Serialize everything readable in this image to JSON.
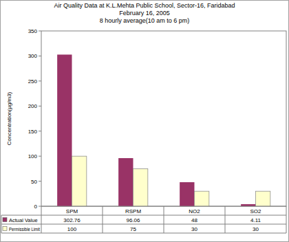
{
  "chart_data": {
    "type": "bar",
    "title": "Air Quality Data at K.L.Mehta Public School, Sector-16, Faridabad",
    "subtitle": [
      "February 16, 2005",
      "8 hourly average(10 am to 6 pm)"
    ],
    "y_label": "Concentration(µg/m3)",
    "categories": [
      "SPM",
      "RSPM",
      "NO2",
      "SO2"
    ],
    "series": [
      {
        "name": "Actual Value",
        "color": "#993366",
        "values": [
          302.76,
          96.06,
          48,
          4.11
        ]
      },
      {
        "name": "Permissible Limit",
        "color": "#ffffcc",
        "values": [
          100,
          75,
          30,
          30
        ]
      }
    ],
    "ylim": [
      0,
      350
    ],
    "yticks": [
      0,
      50,
      100,
      150,
      200,
      250,
      300,
      350
    ],
    "grid": false
  }
}
